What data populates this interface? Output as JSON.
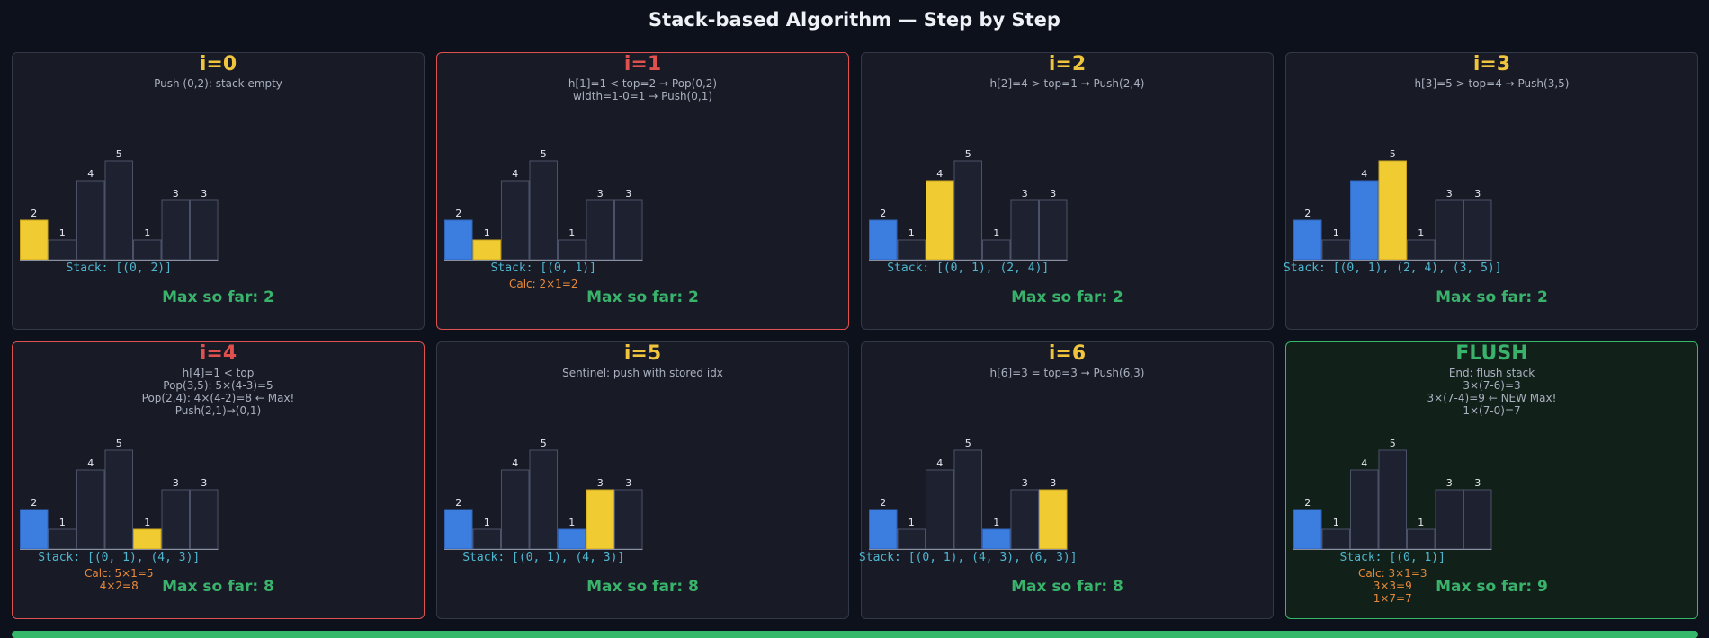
{
  "title": "Stack-based Algorithm — Step by Step",
  "colors": {
    "empty": "#1e2130",
    "empty_border": "#4b5166",
    "current": "#f0cb32",
    "on_stack": "#3c7de0",
    "title_normal": "#f0c53d",
    "title_alert": "#e0504f",
    "title_final": "#39b36b",
    "stack": "#4fb6cf",
    "calc": "#e8893a",
    "max": "#39b36b"
  },
  "heights": [
    2,
    1,
    4,
    5,
    1,
    3,
    3
  ],
  "panels": [
    {
      "title": "i=0",
      "variant": "normal",
      "notes": [
        "Push (0,2): stack empty"
      ],
      "states": [
        "current",
        "empty",
        "empty",
        "empty",
        "empty",
        "empty",
        "empty"
      ],
      "stack": "Stack: [(0, 2)]",
      "calc": [],
      "max": "Max so far: 2"
    },
    {
      "title": "i=1",
      "variant": "alert",
      "notes": [
        "h[1]=1 < top=2 → Pop(0,2)",
        "width=1-0=1 → Push(0,1)"
      ],
      "states": [
        "stack",
        "current",
        "empty",
        "empty",
        "empty",
        "empty",
        "empty"
      ],
      "stack": "Stack: [(0, 1)]",
      "calc": [
        "Calc: 2×1=2"
      ],
      "max": "Max so far: 2"
    },
    {
      "title": "i=2",
      "variant": "normal",
      "notes": [
        "h[2]=4 > top=1 → Push(2,4)"
      ],
      "states": [
        "stack",
        "empty",
        "current",
        "empty",
        "empty",
        "empty",
        "empty"
      ],
      "stack": "Stack: [(0, 1), (2, 4)]",
      "calc": [],
      "max": "Max so far: 2"
    },
    {
      "title": "i=3",
      "variant": "normal",
      "notes": [
        "h[3]=5 > top=4 → Push(3,5)"
      ],
      "states": [
        "stack",
        "empty",
        "stack",
        "current",
        "empty",
        "empty",
        "empty"
      ],
      "stack": "Stack: [(0, 1), (2, 4), (3, 5)]",
      "calc": [],
      "max": "Max so far: 2"
    },
    {
      "title": "i=4",
      "variant": "alert",
      "notes": [
        "h[4]=1 < top",
        "Pop(3,5): 5×(4-3)=5",
        "Pop(2,4): 4×(4-2)=8 ← Max!",
        "Push(2,1)→(0,1)"
      ],
      "states": [
        "stack",
        "empty",
        "empty",
        "empty",
        "current",
        "empty",
        "empty"
      ],
      "stack": "Stack: [(0, 1), (4, 3)]",
      "calc": [
        "Calc: 5×1=5",
        "4×2=8"
      ],
      "max": "Max so far: 8"
    },
    {
      "title": "i=5",
      "variant": "normal",
      "notes": [
        "Sentinel: push with stored idx"
      ],
      "states": [
        "stack",
        "empty",
        "empty",
        "empty",
        "stack",
        "current",
        "empty"
      ],
      "stack": "Stack: [(0, 1), (4, 3)]",
      "calc": [],
      "max": "Max so far: 8"
    },
    {
      "title": "i=6",
      "variant": "normal",
      "notes": [
        "h[6]=3 = top=3 → Push(6,3)"
      ],
      "states": [
        "stack",
        "empty",
        "empty",
        "empty",
        "stack",
        "empty",
        "current"
      ],
      "stack": "Stack: [(0, 1), (4, 3), (6, 3)]",
      "calc": [],
      "max": "Max so far: 8"
    },
    {
      "title": "FLUSH",
      "variant": "final",
      "notes": [
        "End: flush stack",
        "3×(7-6)=3",
        "3×(7-4)=9 ← NEW Max!",
        "1×(7-0)=7"
      ],
      "states": [
        "stack",
        "empty",
        "empty",
        "empty",
        "empty",
        "empty",
        "empty"
      ],
      "stack": "Stack: [(0, 1)]",
      "calc": [
        "Calc: 3×1=3",
        "3×3=9",
        "1×7=7"
      ],
      "max": "Max so far: 9"
    }
  ]
}
